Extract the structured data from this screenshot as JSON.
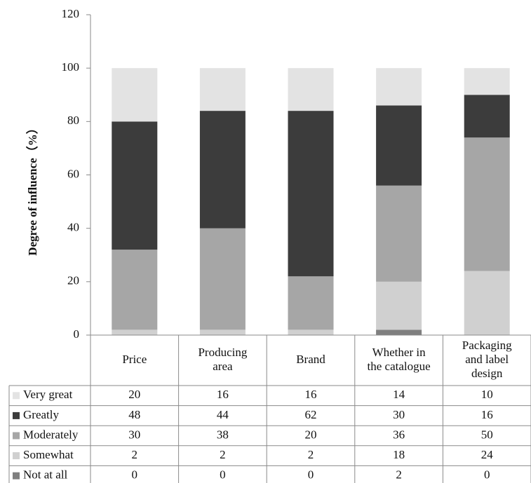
{
  "chart_data": {
    "type": "bar",
    "stacked": true,
    "ylabel": "Degree of influence（%）",
    "ylim": [
      0,
      120
    ],
    "yticks": [
      0,
      20,
      40,
      60,
      80,
      100,
      120
    ],
    "grid": false,
    "legend": "data-table",
    "categories": [
      [
        "Price"
      ],
      [
        "Producing",
        "area"
      ],
      [
        "Brand"
      ],
      [
        "Whether in",
        "the  catalogue"
      ],
      [
        "Packaging",
        "and label",
        "design"
      ]
    ],
    "series": [
      {
        "name": "Not at all",
        "color": "#7f7f7f",
        "values": [
          0,
          0,
          0,
          2,
          0
        ]
      },
      {
        "name": "Somewhat",
        "color": "#d0d0d0",
        "values": [
          2,
          2,
          2,
          18,
          24
        ]
      },
      {
        "name": "Moderately",
        "color": "#a6a6a6",
        "values": [
          30,
          38,
          20,
          36,
          50
        ]
      },
      {
        "name": "Greatly",
        "color": "#3c3c3c",
        "values": [
          48,
          44,
          62,
          30,
          16
        ]
      },
      {
        "name": "Very great",
        "color": "#e3e3e3",
        "values": [
          20,
          16,
          16,
          14,
          10
        ]
      }
    ],
    "table_row_order": [
      "Very great",
      "Greatly",
      "Moderately",
      "Somewhat",
      "Not at all"
    ]
  }
}
